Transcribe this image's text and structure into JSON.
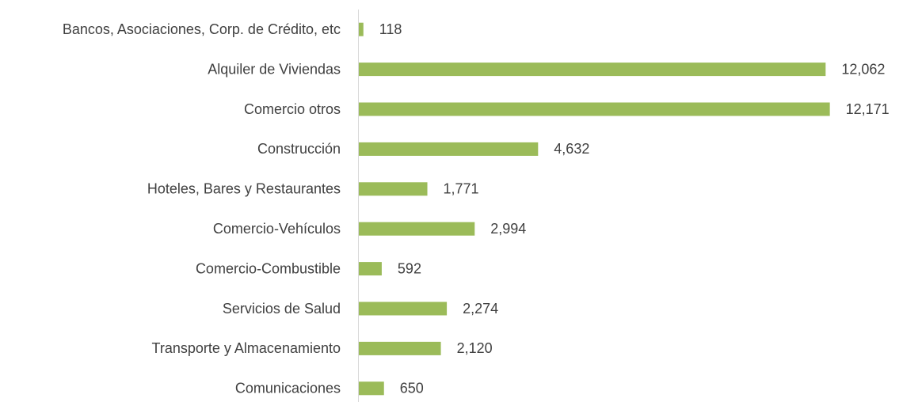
{
  "chart_data": {
    "type": "bar",
    "orientation": "horizontal",
    "categories": [
      "Bancos, Asociaciones, Corp. de Crédito, etc",
      "Alquiler de Viviendas",
      "Comercio otros",
      "Construcción",
      "Hoteles, Bares y Restaurantes",
      "Comercio-Vehículos",
      "Comercio-Combustible",
      "Servicios de Salud",
      "Transporte y Almacenamiento",
      "Comunicaciones"
    ],
    "values": [
      118,
      12062,
      12171,
      4632,
      1771,
      2994,
      592,
      2274,
      2120,
      650
    ],
    "value_labels": [
      "118",
      "12,062",
      "12,171",
      "4,632",
      "1,771",
      "2,994",
      "592",
      "2,274",
      "2,120",
      "650"
    ],
    "color": "#9bbb59",
    "xlim": [
      0,
      14000
    ]
  }
}
